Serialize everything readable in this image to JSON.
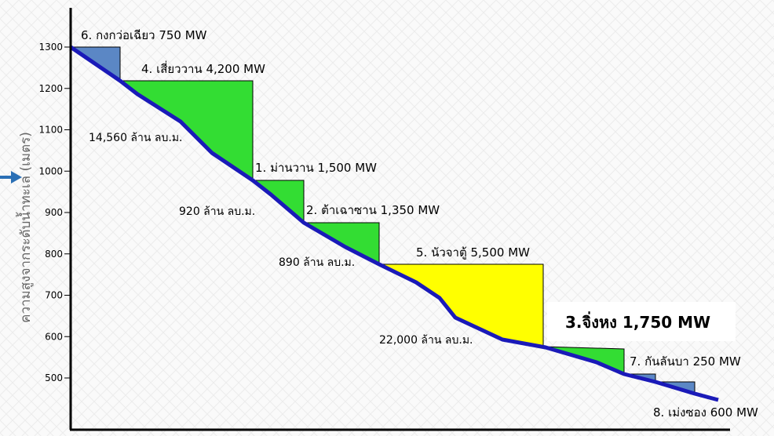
{
  "axis": {
    "label": "ความสูงจากระดับน้ำทะเล (เมตร)",
    "ticks": [
      1300,
      1200,
      1100,
      1000,
      900,
      800,
      700,
      600,
      500
    ]
  },
  "dams": [
    {
      "label": "6. กงกว่อเฉียว 750 MW"
    },
    {
      "label": "4. เสี่ยววาน 4,200 MW"
    },
    {
      "label": "1. ม่านวาน 1,500 MW"
    },
    {
      "label": "2. ต้าเฉาซาน 1,350 MW"
    },
    {
      "label": "5. นัวจาตู้ 5,500 MW"
    },
    {
      "label": "3.จิ่งหง 1,750 MW"
    },
    {
      "label": "7. กันลันบา 250 MW"
    },
    {
      "label": "8. เม่งซอง 600 MW"
    }
  ],
  "volumes": [
    "14,560 ล้าน ลบ.ม.",
    "920  ล้าน ลบ.ม.",
    "890  ล้าน ลบ.ม.",
    "22,000 ล้าน ลบ.ม."
  ]
}
